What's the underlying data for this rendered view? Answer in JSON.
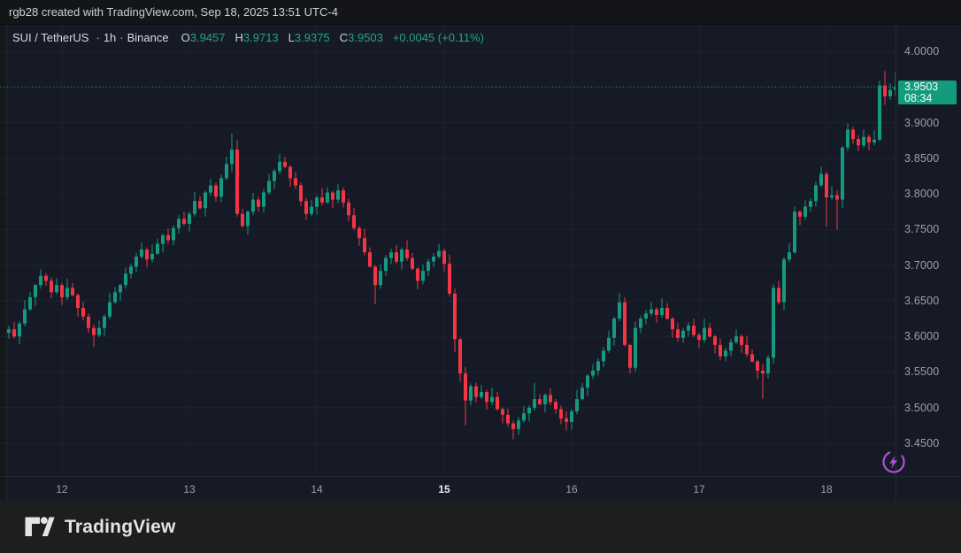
{
  "topbar": {
    "text": "rgb28 created with TradingView.com, Sep 18, 2025 13:51 UTC-4"
  },
  "legend": {
    "symbol": "SUI / TetherUS",
    "separator": "·",
    "interval": "1h",
    "exchange": "Binance",
    "ohlc": [
      {
        "label": "O",
        "value": "3.9457"
      },
      {
        "label": "H",
        "value": "3.9713"
      },
      {
        "label": "L",
        "value": "3.9375"
      },
      {
        "label": "C",
        "value": "3.9503"
      }
    ],
    "change": "+0.0045 (+0.11%)"
  },
  "price_label": {
    "price": "3.9503",
    "countdown": "08:34"
  },
  "footer": {
    "brand": "TradingView"
  },
  "icons": {
    "boost": "lightning-bolt-icon",
    "brand": "tradingview-mark-icon"
  },
  "colors": {
    "up": "#179980",
    "down": "#F23645",
    "badge": "#139B7D",
    "legend_value": "#27A18A",
    "accent_purple": "#B04FD6",
    "bg_chart": "#151A26",
    "bg_topbar": "#131519",
    "bg_footer": "#1D1F1F",
    "grid": "#1E2331",
    "axis_text": "#9BA0AA",
    "text_bright": "#D8DBDF"
  },
  "chart_data": {
    "type": "candlestick",
    "title": "SUI / TetherUS · 1h · Binance",
    "interval": "1h",
    "legend_position": "top-left",
    "grid": true,
    "ylim": [
      3.4041,
      4.0373
    ],
    "yticks": [
      4.0,
      3.95,
      3.9,
      3.85,
      3.8,
      3.75,
      3.7,
      3.65,
      3.6,
      3.55,
      3.5,
      3.45
    ],
    "ytick_format_decimals": 4,
    "xticks": [
      {
        "label": "12",
        "hour": 10
      },
      {
        "label": "13",
        "hour": 34
      },
      {
        "label": "14",
        "hour": 58
      },
      {
        "label": "15",
        "hour": 82,
        "emphasis": true
      },
      {
        "label": "16",
        "hour": 106
      },
      {
        "label": "17",
        "hour": 130
      },
      {
        "label": "18",
        "hour": 154
      }
    ],
    "last": {
      "open": 3.9457,
      "high": 3.9713,
      "low": 3.9375,
      "close": 3.9503,
      "change": "+0.0045 (+0.11%)"
    },
    "first_open": 3.605,
    "closes": [
      3.61,
      3.6,
      3.618,
      3.638,
      3.655,
      3.672,
      3.685,
      3.678,
      3.662,
      3.672,
      3.655,
      3.668,
      3.658,
      3.64,
      3.628,
      3.612,
      3.602,
      3.612,
      3.628,
      3.648,
      3.662,
      3.672,
      3.688,
      3.698,
      3.712,
      3.722,
      3.708,
      3.716,
      3.73,
      3.742,
      3.735,
      3.752,
      3.765,
      3.758,
      3.772,
      3.79,
      3.78,
      3.802,
      3.812,
      3.796,
      3.822,
      3.842,
      3.862,
      3.772,
      3.755,
      3.775,
      3.792,
      3.782,
      3.802,
      3.818,
      3.832,
      3.845,
      3.838,
      3.822,
      3.812,
      3.79,
      3.772,
      3.782,
      3.795,
      3.788,
      3.802,
      3.792,
      3.805,
      3.788,
      3.77,
      3.752,
      3.738,
      3.718,
      3.698,
      3.672,
      3.692,
      3.71,
      3.718,
      3.705,
      3.722,
      3.71,
      3.695,
      3.678,
      3.692,
      3.705,
      3.712,
      3.72,
      3.702,
      3.66,
      3.596,
      3.548,
      3.51,
      3.53,
      3.515,
      3.522,
      3.508,
      3.515,
      3.498,
      3.49,
      3.478,
      3.47,
      3.482,
      3.492,
      3.5,
      3.512,
      3.505,
      3.518,
      3.508,
      3.498,
      3.485,
      3.48,
      3.495,
      3.512,
      3.528,
      3.545,
      3.552,
      3.565,
      3.58,
      3.598,
      3.625,
      3.648,
      3.588,
      3.556,
      3.612,
      3.625,
      3.632,
      3.638,
      3.63,
      3.64,
      3.625,
      3.61,
      3.598,
      3.608,
      3.615,
      3.602,
      3.595,
      3.612,
      3.6,
      3.588,
      3.572,
      3.58,
      3.592,
      3.6,
      3.588,
      3.575,
      3.565,
      3.552,
      3.548,
      3.57,
      3.668,
      3.648,
      3.708,
      3.718,
      3.775,
      3.768,
      3.782,
      3.79,
      3.812,
      3.828,
      3.795,
      3.798,
      3.792,
      3.865,
      3.89,
      3.877,
      3.868,
      3.88,
      3.872,
      3.876,
      3.952,
      3.937,
      3.9457,
      3.9503
    ],
    "wick_high_pattern": [
      0.005,
      0.01,
      0.003,
      0.013,
      0.007,
      0.002,
      0.009,
      0.004
    ],
    "wick_low_pattern": [
      0.008,
      0.003,
      0.011,
      0.004,
      0.002,
      0.012,
      0.005,
      0.007
    ],
    "wick_overrides": {
      "16": {
        "l": 3.585
      },
      "42": {
        "h": 3.885
      },
      "51": {
        "h": 3.856
      },
      "69": {
        "l": 3.645
      },
      "84": {
        "l": 3.578
      },
      "86": {
        "l": 3.475
      },
      "95": {
        "l": 3.4555
      },
      "99": {
        "h": 3.535
      },
      "105": {
        "l": 3.468
      },
      "117": {
        "l": 3.548
      },
      "142": {
        "l": 3.512
      },
      "154": {
        "l": 3.754
      },
      "156": {
        "l": 3.75
      },
      "165": {
        "h": 3.9725
      },
      "167": {
        "h": 3.9713,
        "l": 3.9375
      }
    }
  }
}
